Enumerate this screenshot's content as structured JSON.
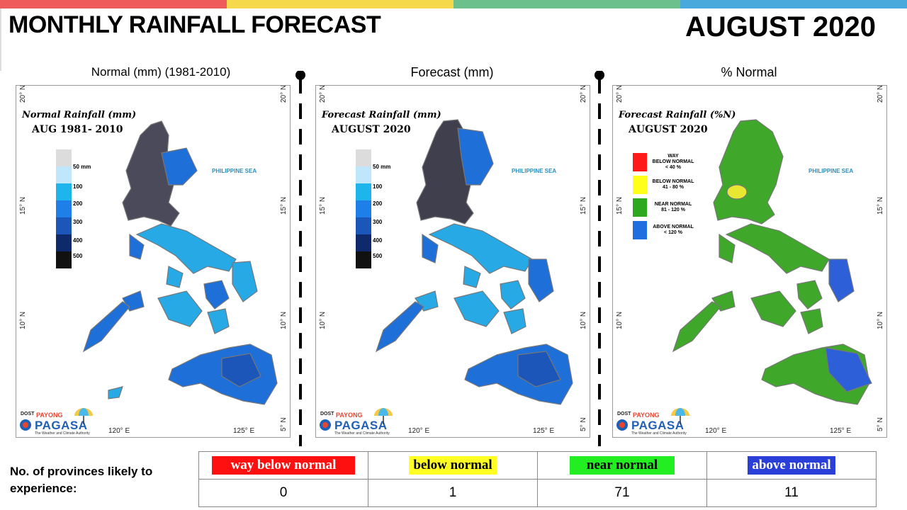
{
  "header": {
    "title": "MONTHLY RAINFALL FORECAST",
    "month": "AUGUST 2020",
    "top_stripe_colors": [
      "#ef5a5a",
      "#f6d84b",
      "#6cc08b",
      "#4aa9dc"
    ]
  },
  "panels": [
    {
      "heading": "Normal (mm) (1981-2010)",
      "map_title": "Normal Rainfall (mm)",
      "map_subtitle": "AUG 1981- 2010",
      "legend": [
        "50 mm",
        "100",
        "200",
        "300",
        "400",
        "500"
      ],
      "legend_colors": [
        "#dcdcdc",
        "#bfe6fa",
        "#1eb4ec",
        "#1f7fe8",
        "#1b56b8",
        "#0e2a6b",
        "#111111"
      ]
    },
    {
      "heading": "Forecast (mm)",
      "map_title": "Forecast Rainfall (mm)",
      "map_subtitle": "AUGUST 2020",
      "legend": [
        "50 mm",
        "100",
        "200",
        "300",
        "400",
        "500"
      ],
      "legend_colors": [
        "#dcdcdc",
        "#bfe6fa",
        "#1eb4ec",
        "#1f7fe8",
        "#1b56b8",
        "#0e2a6b",
        "#111111"
      ]
    },
    {
      "heading": "% Normal",
      "map_title": "Forecast Rainfall (%N)",
      "map_subtitle": "AUGUST 2020",
      "legend": [
        {
          "lines": [
            "WAY",
            "BELOW NORMAL",
            "< 40 %"
          ],
          "color": "#ff1a1a"
        },
        {
          "lines": [
            "BELOW NORMAL",
            "41 - 80 %"
          ],
          "color": "#ffff1a"
        },
        {
          "lines": [
            "NEAR NORMAL",
            "81 - 120 %"
          ],
          "color": "#2ea81e"
        },
        {
          "lines": [
            "ABOVE NORMAL",
            "< 120 %"
          ],
          "color": "#1f6fe0"
        }
      ]
    }
  ],
  "map_labels": {
    "sea": "PHILIPPINE SEA",
    "lat_20": "20° N",
    "lat_15": "15° N",
    "lat_10": "10° N",
    "lat_5": "5° N",
    "lon_120": "120° E",
    "lon_125": "125° E"
  },
  "logo": {
    "dost": "DOST",
    "payong": "PAYONG",
    "pagasa": "PAGASA",
    "tagline": "The Weather and Climate Authority"
  },
  "provinces": {
    "label": "No. of provinces likely to experience:",
    "categories": [
      {
        "name": "way below normal",
        "count": "0",
        "color": "#ff1010",
        "text_color": "#ffffff"
      },
      {
        "name": "below normal",
        "count": "1",
        "color": "#ffff22",
        "text_color": "#000000"
      },
      {
        "name": "near normal",
        "count": "71",
        "color": "#22ee22",
        "text_color": "#000000"
      },
      {
        "name": "above normal",
        "count": "11",
        "color": "#2a3fd8",
        "text_color": "#ffffff"
      }
    ]
  }
}
